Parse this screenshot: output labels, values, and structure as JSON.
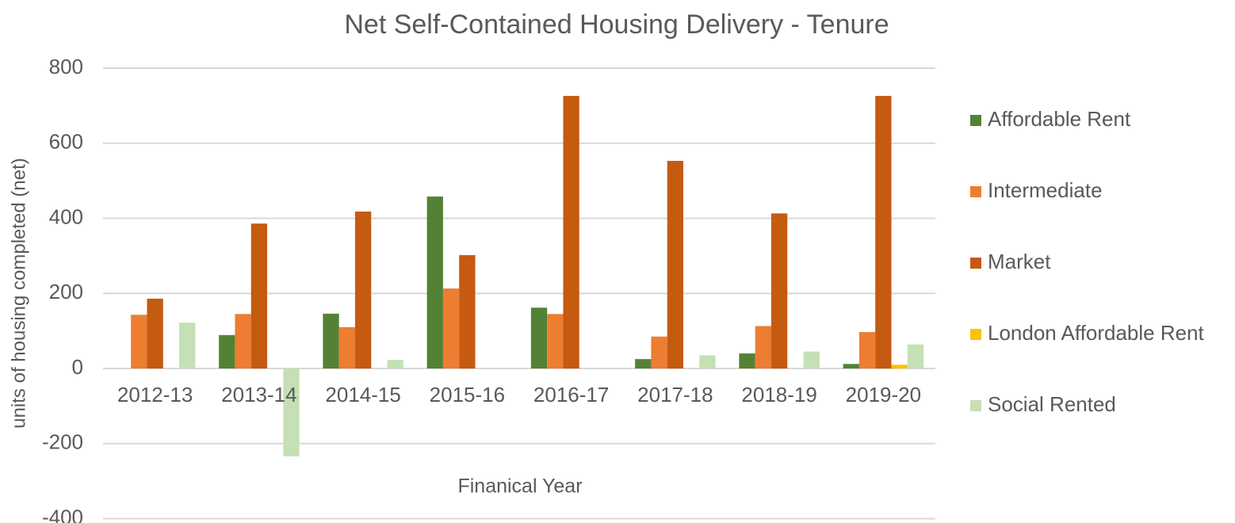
{
  "chart_data": {
    "type": "bar",
    "title": "Net Self-Contained Housing Delivery - Tenure",
    "x_label": "Finanical Year",
    "y_label": "units of housing completed (net)",
    "categories": [
      "2012-13",
      "2013-14",
      "2014-15",
      "2015-16",
      "2016-17",
      "2017-18",
      "2018-19",
      "2019-20"
    ],
    "series": [
      {
        "name": "Affordable Rent",
        "color": "#548235",
        "values": [
          0,
          89,
          146,
          458,
          162,
          25,
          40,
          12
        ]
      },
      {
        "name": "Intermediate",
        "color": "#ed7d31",
        "values": [
          143,
          145,
          110,
          213,
          145,
          85,
          113,
          97
        ]
      },
      {
        "name": "Market",
        "color": "#c55a11",
        "values": [
          186,
          386,
          418,
          302,
          726,
          553,
          413,
          726
        ]
      },
      {
        "name": "London Affordable Rent",
        "color": "#ffc000",
        "values": [
          0,
          0,
          0,
          0,
          0,
          0,
          0,
          10
        ]
      },
      {
        "name": "Social Rented",
        "color": "#c5e0b4",
        "values": [
          122,
          -234,
          23,
          0,
          0,
          35,
          45,
          64
        ]
      }
    ],
    "ylim": [
      -400,
      800
    ],
    "yticks": [
      -400,
      -200,
      0,
      200,
      400,
      600,
      800
    ],
    "grid": true,
    "legend": "right"
  }
}
